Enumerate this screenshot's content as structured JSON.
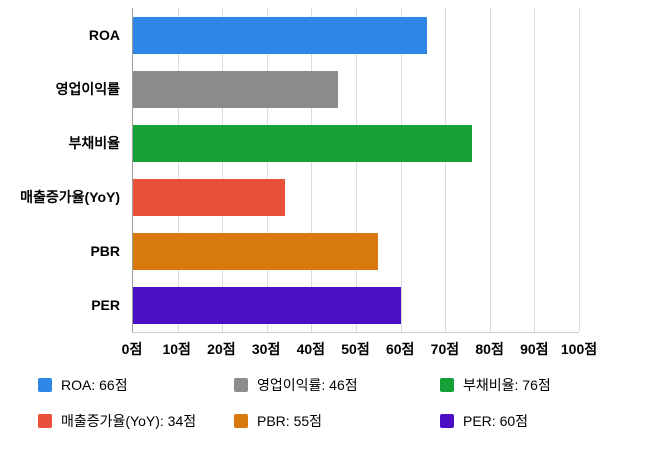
{
  "chart_data": {
    "type": "bar",
    "orientation": "horizontal",
    "title": "",
    "xlabel": "",
    "ylabel": "",
    "unit": "점",
    "categories": [
      "ROA",
      "영업이익률",
      "부채비율",
      "매출증가율(YoY)",
      "PBR",
      "PER"
    ],
    "values": [
      66,
      46,
      76,
      34,
      55,
      60
    ],
    "colors": [
      "#2e86e5",
      "#8c8c8c",
      "#17a038",
      "#e8503a",
      "#d8790e",
      "#4b0fc4"
    ],
    "xlim": [
      0,
      100
    ],
    "tick_values": [
      0,
      10,
      20,
      30,
      40,
      50,
      60,
      70,
      80,
      90,
      100
    ],
    "x_ticks": [
      "0점",
      "10점",
      "20점",
      "30점",
      "40점",
      "50점",
      "60점",
      "70점",
      "80점",
      "90점",
      "100점"
    ],
    "grid": true,
    "legend_position": "bottom",
    "legend": [
      {
        "label": "ROA: 66점",
        "color": "#2e86e5"
      },
      {
        "label": "영업이익률: 46점",
        "color": "#8c8c8c"
      },
      {
        "label": "부채비율: 76점",
        "color": "#17a038"
      },
      {
        "label": "매출증가율(YoY): 34점",
        "color": "#e8503a"
      },
      {
        "label": "PBR: 55점",
        "color": "#d8790e"
      },
      {
        "label": "PER: 60점",
        "color": "#4b0fc4"
      }
    ]
  }
}
